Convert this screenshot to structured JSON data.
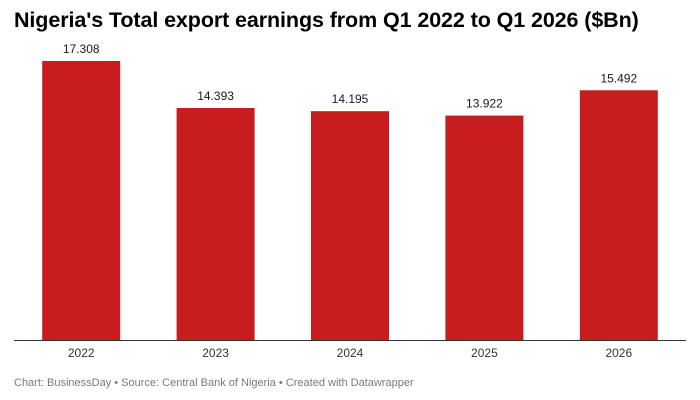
{
  "chart_data": {
    "type": "bar",
    "title": "Nigeria's Total export earnings from Q1 2022 to Q1 2026 ($Bn)",
    "categories": [
      "2022",
      "2023",
      "2024",
      "2025",
      "2026"
    ],
    "values": [
      17.308,
      14.393,
      14.195,
      13.922,
      15.492
    ],
    "value_labels": [
      "17.308",
      "14.393",
      "14.195",
      "13.922",
      "15.492"
    ],
    "xlabel": "",
    "ylabel": "",
    "ylim": [
      0,
      17.308
    ],
    "grid": false,
    "legend": "none",
    "bar_color": "#c71d1f",
    "baseline_color": "#333333"
  },
  "footer": {
    "text": "Chart: BusinessDay • Source: Central Bank of Nigeria • Created with Datawrapper"
  }
}
